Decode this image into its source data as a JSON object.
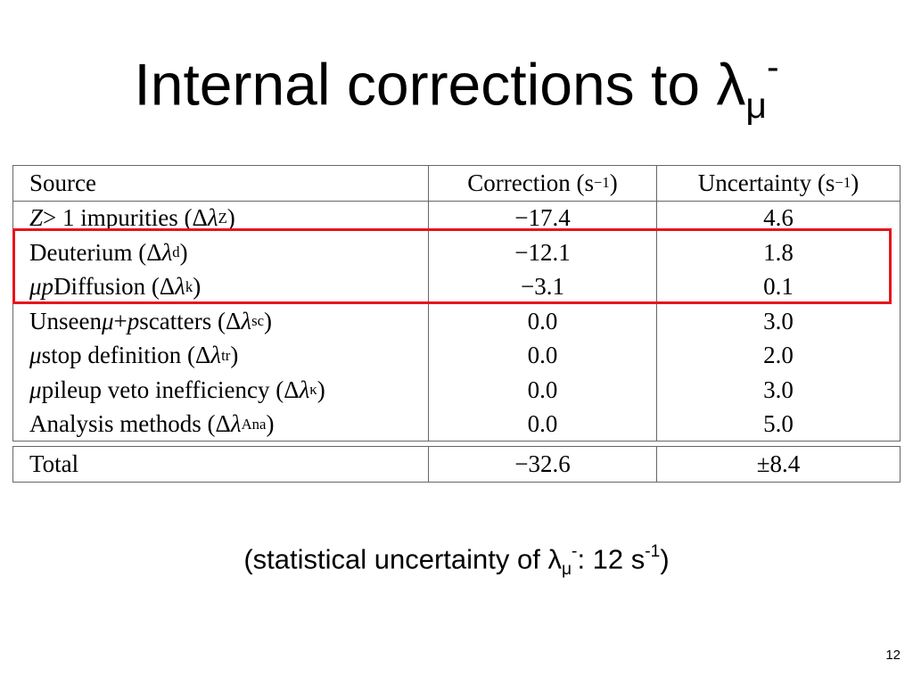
{
  "header": {
    "title": [
      {
        "t": "Internal corrections to λ"
      },
      {
        "sub": "μ"
      },
      {
        "sup": "-"
      }
    ]
  },
  "table": {
    "header": [
      [
        {
          "t": "Source"
        }
      ],
      [
        {
          "t": "Correction (s"
        },
        {
          "sup": "−1"
        },
        {
          "t": ")"
        }
      ],
      [
        {
          "t": "Uncertainty (s"
        },
        {
          "sup": "−1"
        },
        {
          "t": ")"
        }
      ]
    ],
    "rows": [
      [
        [
          {
            "i": "Z"
          },
          {
            "t": " > 1 impurities (Δ"
          },
          {
            "i": "λ"
          },
          {
            "sub": "Z"
          },
          {
            "t": ")"
          }
        ],
        [
          {
            "t": "−17.4"
          }
        ],
        [
          {
            "t": "4.6"
          }
        ]
      ],
      [
        [
          {
            "t": "Deuterium (Δ"
          },
          {
            "i": "λ"
          },
          {
            "sub": "d"
          },
          {
            "t": ")"
          }
        ],
        [
          {
            "t": "−12.1"
          }
        ],
        [
          {
            "t": "1.8"
          }
        ]
      ],
      [
        [
          {
            "i": "μp"
          },
          {
            "t": " Diffusion (Δ"
          },
          {
            "i": "λ"
          },
          {
            "sub": "k"
          },
          {
            "t": ")"
          }
        ],
        [
          {
            "t": "−3.1"
          }
        ],
        [
          {
            "t": "0.1"
          }
        ]
      ],
      [
        [
          {
            "t": "Unseen "
          },
          {
            "i": "μ"
          },
          {
            "t": " + "
          },
          {
            "i": "p"
          },
          {
            "t": " scatters (Δ"
          },
          {
            "i": "λ"
          },
          {
            "sub": "sc"
          },
          {
            "t": ")"
          }
        ],
        [
          {
            "t": "0.0"
          }
        ],
        [
          {
            "t": "3.0"
          }
        ]
      ],
      [
        [
          {
            "i": "μ"
          },
          {
            "t": " stop definition (Δ"
          },
          {
            "i": "λ"
          },
          {
            "sub": "tr"
          },
          {
            "t": ")"
          }
        ],
        [
          {
            "t": "0.0"
          }
        ],
        [
          {
            "t": "2.0"
          }
        ]
      ],
      [
        [
          {
            "i": "μ"
          },
          {
            "t": " pileup veto inefficiency (Δ"
          },
          {
            "i": "λ"
          },
          {
            "sub": "κ"
          },
          {
            "t": ")"
          }
        ],
        [
          {
            "t": "0.0"
          }
        ],
        [
          {
            "t": "3.0"
          }
        ]
      ],
      [
        [
          {
            "t": "Analysis methods (Δ"
          },
          {
            "i": "λ"
          },
          {
            "sub": "Ana"
          },
          {
            "t": ")"
          }
        ],
        [
          {
            "t": "0.0"
          }
        ],
        [
          {
            "t": "5.0"
          }
        ]
      ]
    ],
    "total": [
      [
        {
          "t": "Total"
        }
      ],
      [
        {
          "t": "−32.6"
        }
      ],
      [
        {
          "t": "±8.4"
        }
      ]
    ]
  },
  "note": [
    {
      "t": "(statistical uncertainty of λ"
    },
    {
      "sub": "μ"
    },
    {
      "sup": "-"
    },
    {
      "t": ": 12 s"
    },
    {
      "sup": "-1"
    },
    {
      "t": ")"
    }
  ],
  "page_number": "12"
}
